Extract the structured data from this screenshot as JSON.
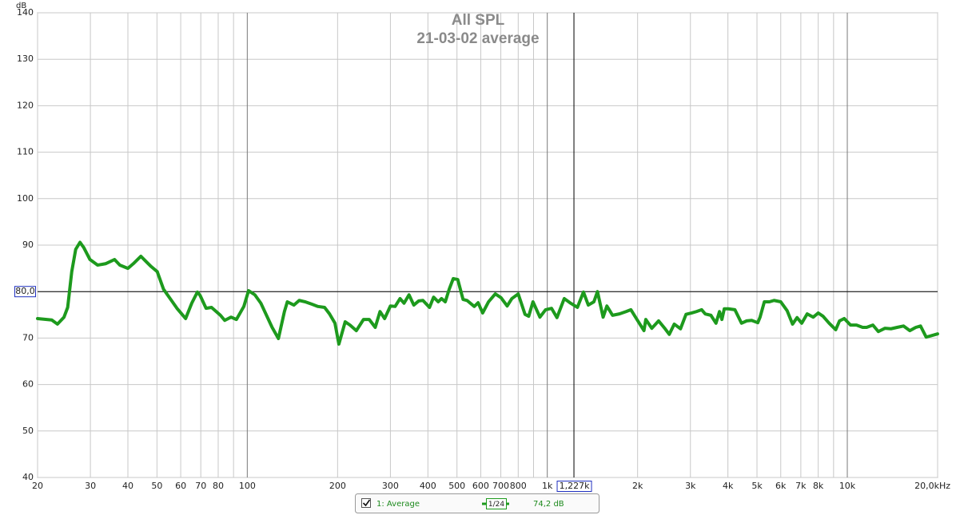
{
  "chart_data": {
    "type": "line",
    "title": "All SPL",
    "subtitle": "21-03-02 average",
    "y_label": "dB",
    "x_scale": "log",
    "grid": true,
    "xlim": [
      20,
      20000
    ],
    "ylim": [
      40,
      140
    ],
    "yticks": [
      40,
      50,
      60,
      70,
      80,
      90,
      100,
      110,
      120,
      130,
      140
    ],
    "xticks": [
      20,
      30,
      40,
      50,
      60,
      70,
      80,
      100,
      200,
      300,
      400,
      500,
      600,
      700,
      800,
      {
        "value": 1000,
        "label": "1k"
      },
      {
        "value": 2000,
        "label": "2k"
      },
      {
        "value": 3000,
        "label": "3k"
      },
      {
        "value": 4000,
        "label": "4k"
      },
      {
        "value": 5000,
        "label": "5k"
      },
      {
        "value": 6000,
        "label": "6k"
      },
      {
        "value": 7000,
        "label": "7k"
      },
      {
        "value": 8000,
        "label": "8k"
      },
      {
        "value": 10000,
        "label": "10k"
      },
      {
        "value": 20000,
        "label": "20,0kHz"
      }
    ],
    "x_minor_grid": [
      90,
      900,
      9000
    ],
    "cursor": {
      "x": 1227,
      "x_label": "1,227k",
      "y": 80,
      "y_label": "80,0"
    },
    "x": [
      20,
      22.3,
      23.3,
      24.5,
      25.2,
      26,
      26.8,
      27.7,
      28.5,
      29.9,
      31.7,
      33.7,
      36.1,
      37.6,
      40,
      41.7,
      44.2,
      46.1,
      47.8,
      50.1,
      52.6,
      56.3,
      58.3,
      62.3,
      65.3,
      68.2,
      69.6,
      72.9,
      76,
      81.4,
      84.1,
      88.3,
      92,
      97.4,
      101,
      106,
      111,
      121,
      127,
      133,
      136,
      143,
      149,
      156,
      164,
      172,
      181,
      188,
      196,
      202,
      212,
      220,
      231,
      244,
      255,
      267,
      277,
      287,
      300,
      311,
      323,
      333,
      346,
      359,
      373,
      385,
      405,
      418,
      433,
      444,
      457,
      471,
      486,
      503,
      524,
      540,
      571,
      588,
      609,
      637,
      671,
      701,
      735,
      762,
      800,
      843,
      867,
      896,
      945,
      987,
      1033,
      1077,
      1139,
      1190,
      1260,
      1320,
      1370,
      1430,
      1470,
      1535,
      1580,
      1650,
      1740,
      1830,
      1900,
      1990,
      2100,
      2130,
      2230,
      2350,
      2470,
      2550,
      2650,
      2780,
      2900,
      3030,
      3140,
      3270,
      3360,
      3510,
      3650,
      3750,
      3820,
      3890,
      4010,
      4220,
      4440,
      4620,
      4800,
      5030,
      5120,
      5290,
      5500,
      5700,
      6000,
      6300,
      6570,
      6800,
      7050,
      7350,
      7700,
      8000,
      8300,
      8700,
      9150,
      9420,
      9770,
      10250,
      10730,
      11250,
      11600,
      12170,
      12690,
      13340,
      13980,
      14660,
      15390,
      16160,
      16920,
      17540,
      18320,
      19990
    ],
    "series": [
      {
        "name": "1: Average",
        "color": "#1d9a1d",
        "smoothing": "1/24",
        "level_label": "74,2 dB",
        "values": [
          74.2,
          73.9,
          73,
          74.5,
          76.6,
          84.3,
          89.1,
          90.6,
          89.5,
          86.9,
          85.7,
          86,
          86.9,
          85.7,
          85,
          86,
          87.6,
          86.4,
          85.4,
          84.3,
          80.5,
          77.8,
          76.4,
          74.2,
          77.5,
          79.9,
          79.2,
          76.4,
          76.6,
          74.9,
          73.8,
          74.5,
          74,
          76.8,
          80.2,
          79.3,
          77.5,
          72.3,
          69.9,
          75.7,
          77.8,
          77.1,
          78.1,
          77.8,
          77.3,
          76.8,
          76.6,
          75.2,
          73.2,
          68.7,
          73.5,
          72.8,
          71.6,
          74,
          74,
          72.3,
          75.7,
          74.2,
          76.9,
          76.8,
          78.5,
          77.5,
          79.3,
          77.1,
          78,
          78.1,
          76.6,
          78.8,
          77.8,
          78.5,
          77.8,
          80.5,
          82.8,
          82.6,
          78.3,
          78.1,
          76.8,
          77.6,
          75.4,
          77.8,
          79.5,
          78.7,
          76.9,
          78.5,
          79.5,
          75.1,
          74.7,
          77.8,
          74.5,
          76.1,
          76.4,
          74.4,
          78.5,
          77.6,
          76.6,
          79.9,
          77.1,
          77.8,
          80,
          74.5,
          76.9,
          74.9,
          75.2,
          75.7,
          76.1,
          74,
          71.6,
          74,
          72.1,
          73.7,
          72,
          70.8,
          73,
          72,
          75.1,
          75.4,
          75.7,
          76.1,
          75.2,
          74.9,
          73.2,
          75.7,
          74,
          76.3,
          76.3,
          76.1,
          73.2,
          73.7,
          73.8,
          73.3,
          74.5,
          77.8,
          77.8,
          78.1,
          77.8,
          75.9,
          73,
          74.4,
          73.2,
          75.2,
          74.5,
          75.4,
          74.7,
          73.2,
          71.8,
          73.7,
          74.2,
          72.8,
          72.8,
          72.3,
          72.3,
          72.8,
          71.4,
          72.1,
          72,
          72.3,
          72.6,
          71.6,
          72.3,
          72.6,
          70.2,
          70.9
        ]
      }
    ]
  }
}
